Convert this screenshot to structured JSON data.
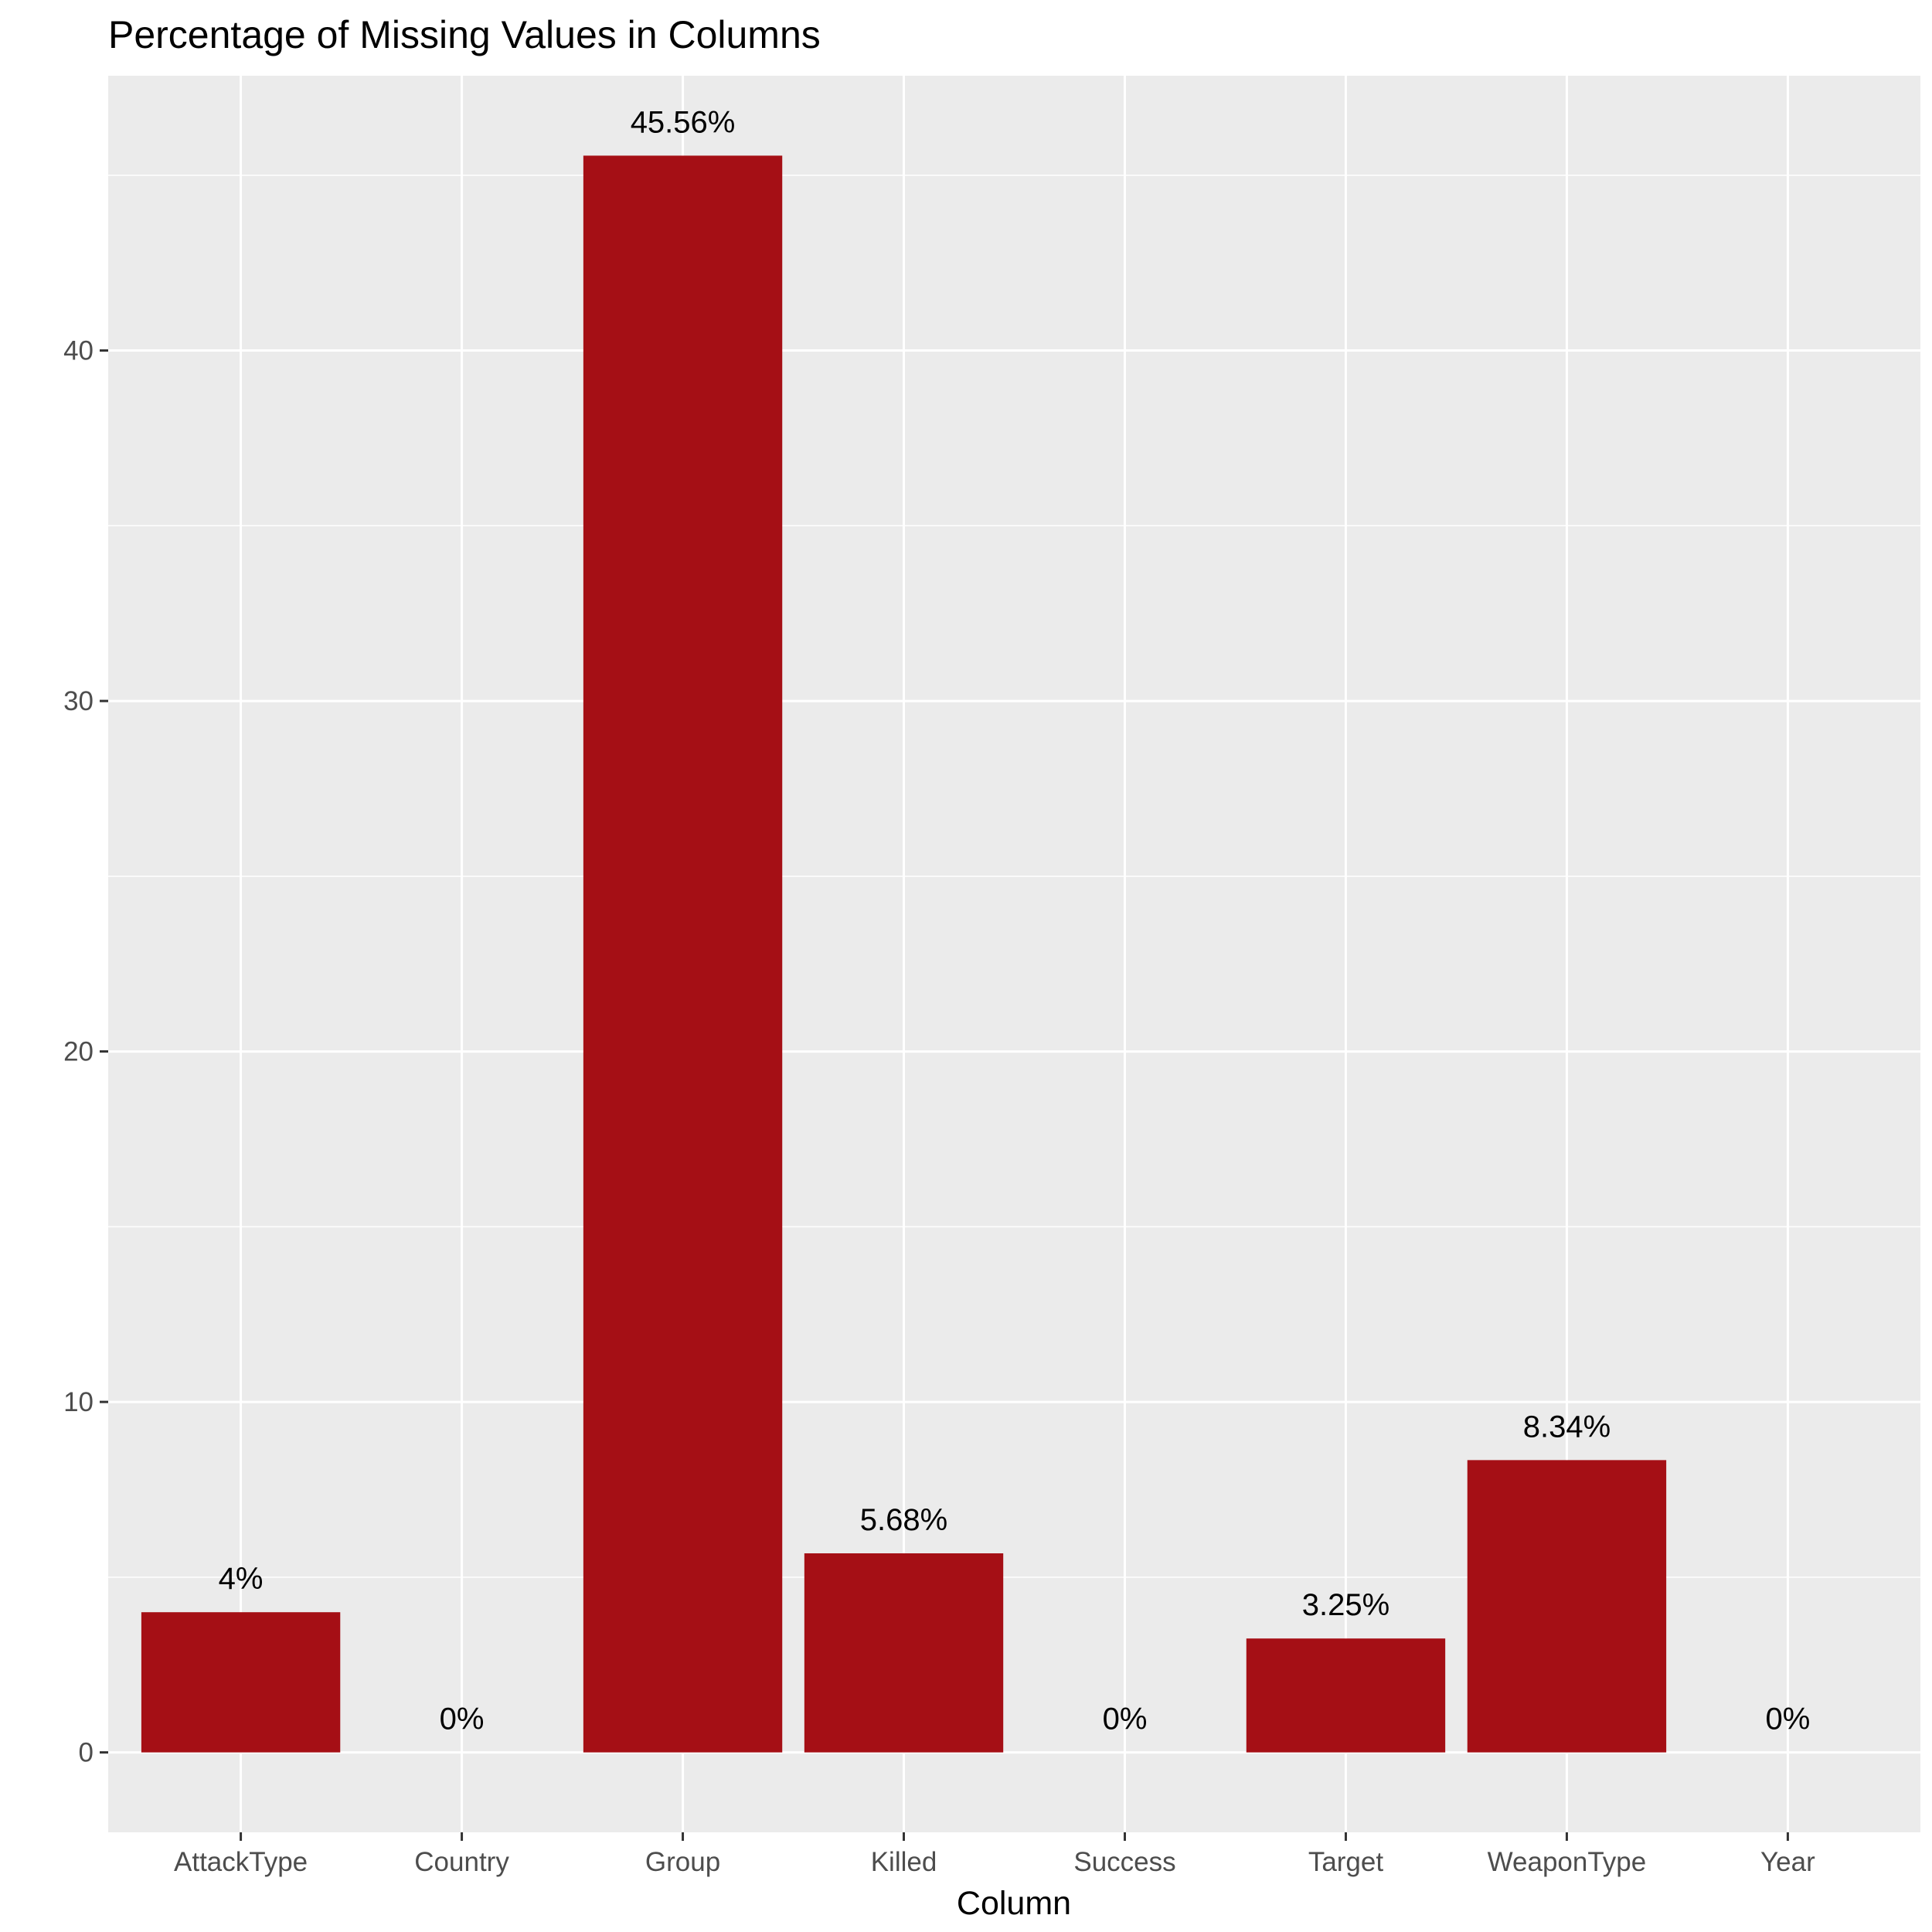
{
  "chart_data": {
    "type": "bar",
    "title": "Percentage of Missing Values in Columns",
    "xlabel": "Column",
    "ylabel": "",
    "categories": [
      "AttackType",
      "Country",
      "Group",
      "Killed",
      "Success",
      "Target",
      "WeaponType",
      "Year"
    ],
    "values": [
      4,
      0,
      45.56,
      5.68,
      0,
      3.25,
      8.34,
      0
    ],
    "data_labels": [
      "4%",
      "0%",
      "45.56%",
      "5.68%",
      "0%",
      "3.25%",
      "8.34%",
      "0%"
    ],
    "y_ticks": [
      0,
      10,
      20,
      30,
      40
    ],
    "y_tick_labels": [
      "0",
      "10",
      "20",
      "30",
      "40"
    ],
    "ylim": [
      -2.28,
      47.84
    ],
    "grid": true,
    "bar_color": "#a50f15",
    "panel_background": "#ebebeb",
    "grid_color": "#ffffff"
  }
}
